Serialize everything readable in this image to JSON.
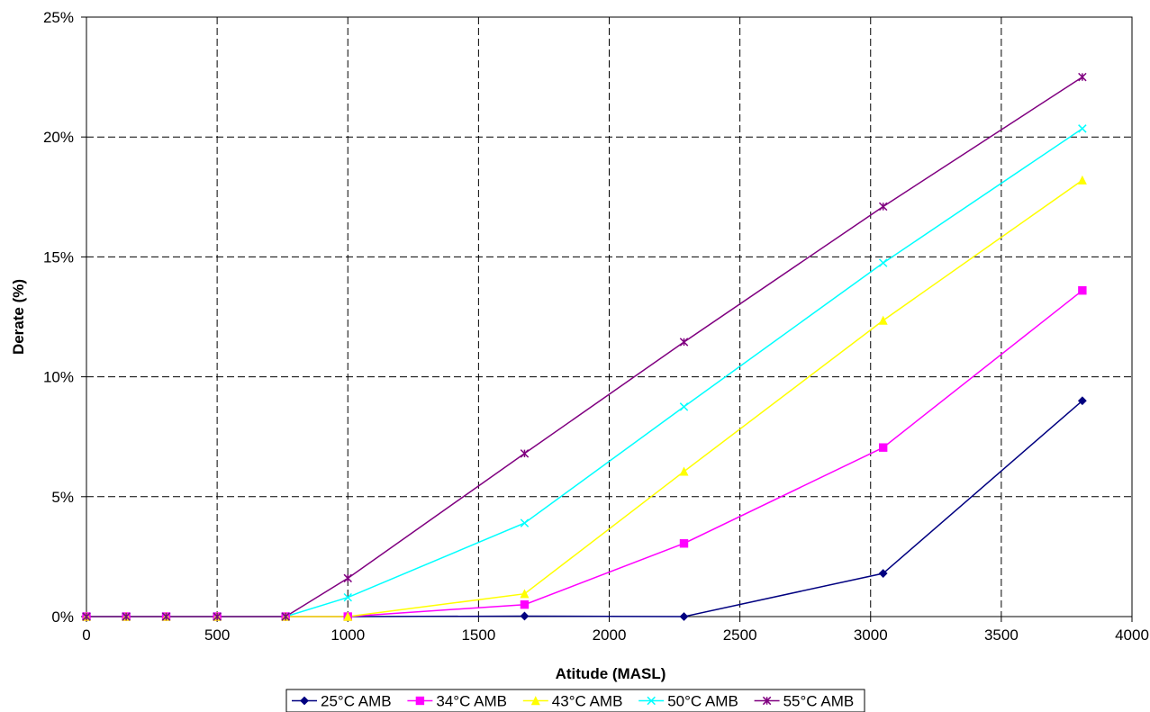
{
  "chart_data": {
    "type": "line",
    "xlabel": "Atitude (MASL)",
    "ylabel": "Derate (%)",
    "xlim": [
      0,
      4000
    ],
    "ylim": [
      0,
      25
    ],
    "x_ticks": [
      "0",
      "500",
      "1000",
      "1500",
      "2000",
      "2500",
      "3000",
      "3500",
      "4000"
    ],
    "y_ticks": [
      "0%",
      "5%",
      "10%",
      "15%",
      "20%",
      "25%"
    ],
    "grid": true,
    "legend_position": "bottom",
    "x": [
      0,
      152,
      305,
      500,
      762,
      1000,
      1676,
      2286,
      3048,
      3810
    ],
    "series": [
      {
        "name": "25°C AMB",
        "color": "#000080",
        "marker": "diamond",
        "values": [
          0,
          0,
          0,
          0,
          0,
          0,
          0.02,
          0,
          1.8,
          9.0
        ]
      },
      {
        "name": "34°C AMB",
        "color": "#ff00ff",
        "marker": "square",
        "values": [
          0,
          0,
          0,
          0,
          0,
          0,
          0.5,
          3.05,
          7.05,
          13.6
        ]
      },
      {
        "name": "43°C AMB",
        "color": "#ffff00",
        "marker": "triangle",
        "values": [
          0,
          0,
          0,
          0,
          0,
          0,
          0.95,
          6.05,
          12.35,
          18.2
        ]
      },
      {
        "name": "50°C AMB",
        "color": "#00ffff",
        "marker": "x",
        "values": [
          0,
          0,
          0,
          0,
          0,
          0.8,
          3.9,
          8.75,
          14.75,
          20.35
        ]
      },
      {
        "name": "55°C AMB",
        "color": "#800080",
        "marker": "star",
        "values": [
          0,
          0,
          0,
          0,
          0,
          1.6,
          6.8,
          11.45,
          17.1,
          22.5
        ]
      }
    ]
  }
}
